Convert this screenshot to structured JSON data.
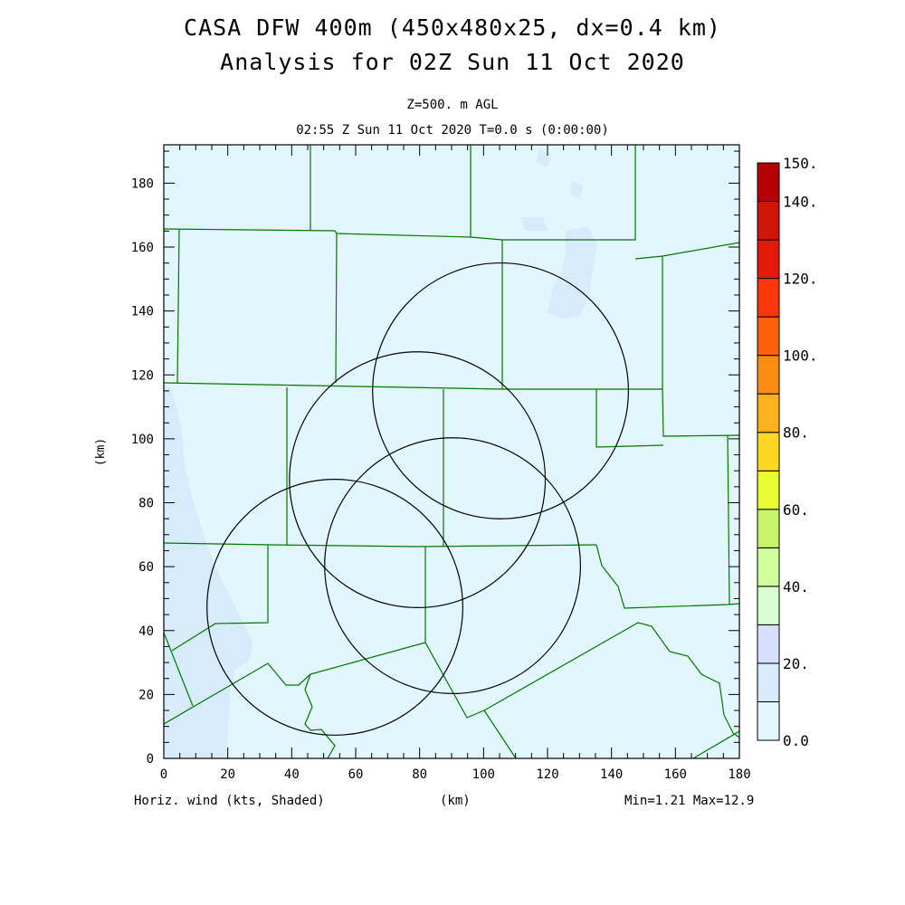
{
  "header": {
    "title_line1": "CASA DFW 400m (450x480x25, dx=0.4 km)",
    "title_line2": "Analysis for 02Z Sun 11 Oct 2020",
    "subtitle_level": "Z=500. m AGL",
    "subtitle_time": "02:55 Z Sun 11 Oct 2020   T=0.0 s (0:00:00)"
  },
  "footer": {
    "field_label": "Horiz. wind (kts, Shaded)",
    "x_unit": "(km)",
    "min_max": "Min=1.21 Max=12.9"
  },
  "chart_data": {
    "type": "heatmap",
    "title": "CASA DFW 400m (450x480x25, dx=0.4 km)",
    "xlabel": "(km)",
    "ylabel": "(km)",
    "xlim": [
      0,
      180
    ],
    "ylim": [
      0,
      192
    ],
    "x_ticks": [
      0,
      20,
      40,
      60,
      80,
      100,
      120,
      140,
      160,
      180
    ],
    "y_ticks": [
      0,
      20,
      40,
      60,
      80,
      100,
      120,
      140,
      160,
      180
    ],
    "field": "Horizontal wind speed (kts)",
    "min": 1.21,
    "max": 12.9,
    "colorbar": {
      "levels": [
        0,
        10,
        20,
        30,
        40,
        50,
        60,
        70,
        80,
        90,
        100,
        110,
        120,
        130,
        140,
        150
      ],
      "labels": [
        "0.0",
        "20.",
        "40.",
        "60.",
        "80.",
        "100.",
        "120.",
        "140.",
        "150."
      ],
      "label_values": [
        0,
        20,
        40,
        60,
        80,
        100,
        120,
        140,
        150
      ],
      "colors": [
        "#e2f6fe",
        "#d6ecfd",
        "#d6e0fe",
        "#d9fdcf",
        "#d0fe9f",
        "#c6f46a",
        "#e9fd33",
        "#fdd720",
        "#fdb11e",
        "#fd8c15",
        "#fe6209",
        "#fe360b",
        "#e41a08",
        "#cc1606",
        "#b30000"
      ]
    },
    "radar_range_circles_km": [
      {
        "center": [
          105.3,
          115.0
        ],
        "radius": 40
      },
      {
        "center": [
          79.3,
          87.2
        ],
        "radius": 40
      },
      {
        "center": [
          90.3,
          60.3
        ],
        "radius": 40
      },
      {
        "center": [
          53.5,
          47.3
        ],
        "radius": 40
      }
    ],
    "colors": {
      "background_field": "#e2f6fe",
      "higher_field": "#d6ecfd",
      "county_lines": "#007700",
      "circles": "#000000"
    }
  }
}
